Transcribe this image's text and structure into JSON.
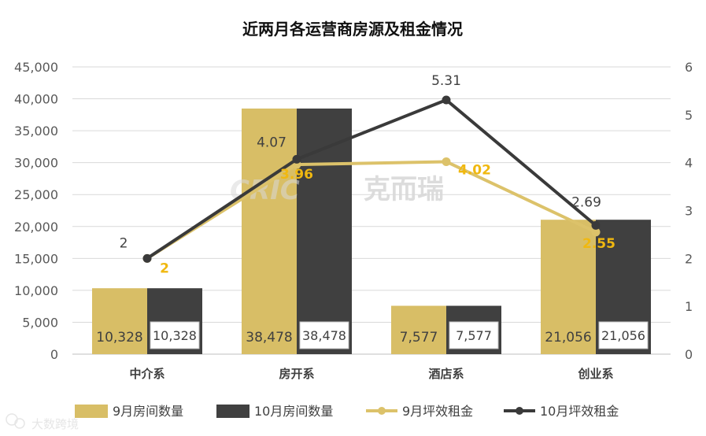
{
  "chart_data": {
    "type": "bar",
    "title": "近两月各运营商房源及租金情况",
    "categories": [
      "中介系",
      "房开系",
      "酒店系",
      "创业系"
    ],
    "y_left": {
      "lim": [
        0,
        45000
      ],
      "ticks": [
        "0",
        "5,000",
        "10,000",
        "15,000",
        "20,000",
        "25,000",
        "30,000",
        "35,000",
        "40,000",
        "45,000"
      ]
    },
    "y_right": {
      "lim": [
        0,
        6
      ],
      "ticks": [
        "0",
        "1",
        "2",
        "3",
        "4",
        "5",
        "6"
      ]
    },
    "grid": true,
    "legend_position": "bottom",
    "bar_series": [
      {
        "name": "9月房间数量",
        "color": "#D8BE66",
        "values": [
          10328,
          38478,
          7577,
          21056
        ],
        "labels": [
          "10,328",
          "38,478",
          "7,577",
          "21,056"
        ]
      },
      {
        "name": "10月房间数量",
        "color": "#404040",
        "values": [
          10328,
          38478,
          7577,
          21056
        ],
        "labels": [
          "10,328",
          "38,478",
          "7,577",
          "21,056"
        ]
      }
    ],
    "line_series": [
      {
        "name": "9月坪效租金",
        "color": "#DCC26A",
        "axis": "right",
        "values": [
          2,
          3.96,
          4.02,
          2.55
        ],
        "labels": [
          "2",
          "3.96",
          "4.02",
          "2.55"
        ]
      },
      {
        "name": "10月坪效租金",
        "color": "#3A3A3A",
        "axis": "right",
        "values": [
          2,
          4.07,
          5.31,
          2.69
        ],
        "labels": [
          "2",
          "4.07",
          "5.31",
          "2.69"
        ]
      }
    ]
  },
  "watermark": {
    "logo": "CRIC",
    "text": "克而瑞"
  },
  "corner_mark": {
    "text": "大数跨境",
    "icon": "wechat-icon"
  }
}
